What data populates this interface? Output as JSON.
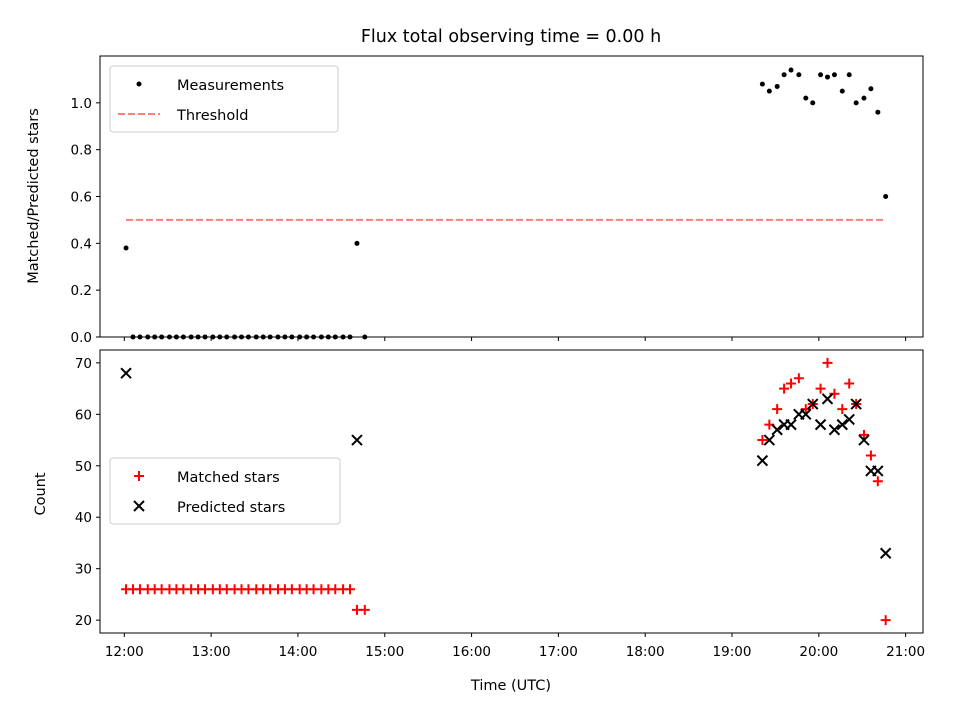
{
  "chart_data": [
    {
      "type": "scatter",
      "title": "Flux total observing time = 0.00 h",
      "xlabel": "",
      "ylabel": "Matched/Predicted stars",
      "ylim": [
        0,
        1.2
      ],
      "yticks": [
        0.0,
        0.2,
        0.4,
        0.6,
        0.8,
        1.0
      ],
      "ytick_labels": [
        "0.0",
        "0.2",
        "0.4",
        "0.6",
        "0.8",
        "1.0"
      ],
      "xlim": [
        11.72,
        21.2
      ],
      "xticks": [
        12,
        13,
        14,
        15,
        16,
        17,
        18,
        19,
        20,
        21
      ],
      "legend": {
        "position": "top-left",
        "entries": [
          {
            "label": "Measurements",
            "marker": "dot",
            "color": "#000000"
          },
          {
            "label": "Threshold",
            "marker": "dashed-line",
            "color": "#ff7f7f"
          }
        ]
      },
      "series": [
        {
          "name": "Measurements",
          "color": "#000000",
          "points": [
            [
              12.02,
              0.38
            ],
            [
              12.1,
              0.0
            ],
            [
              12.18,
              0.0
            ],
            [
              12.27,
              0.0
            ],
            [
              12.35,
              0.0
            ],
            [
              12.43,
              0.0
            ],
            [
              12.52,
              0.0
            ],
            [
              12.6,
              0.0
            ],
            [
              12.68,
              0.0
            ],
            [
              12.77,
              0.0
            ],
            [
              12.85,
              0.0
            ],
            [
              12.93,
              0.0
            ],
            [
              13.02,
              0.0
            ],
            [
              13.1,
              0.0
            ],
            [
              13.18,
              0.0
            ],
            [
              13.27,
              0.0
            ],
            [
              13.35,
              0.0
            ],
            [
              13.43,
              0.0
            ],
            [
              13.52,
              0.0
            ],
            [
              13.6,
              0.0
            ],
            [
              13.68,
              0.0
            ],
            [
              13.77,
              0.0
            ],
            [
              13.85,
              0.0
            ],
            [
              13.93,
              0.0
            ],
            [
              14.02,
              0.0
            ],
            [
              14.1,
              0.0
            ],
            [
              14.18,
              0.0
            ],
            [
              14.27,
              0.0
            ],
            [
              14.35,
              0.0
            ],
            [
              14.43,
              0.0
            ],
            [
              14.52,
              0.0
            ],
            [
              14.6,
              0.0
            ],
            [
              14.68,
              0.4
            ],
            [
              14.77,
              0.0
            ],
            [
              19.35,
              1.08
            ],
            [
              19.43,
              1.05
            ],
            [
              19.52,
              1.07
            ],
            [
              19.6,
              1.12
            ],
            [
              19.68,
              1.14
            ],
            [
              19.77,
              1.12
            ],
            [
              19.85,
              1.02
            ],
            [
              19.93,
              1.0
            ],
            [
              20.02,
              1.12
            ],
            [
              20.1,
              1.11
            ],
            [
              20.18,
              1.12
            ],
            [
              20.27,
              1.05
            ],
            [
              20.35,
              1.12
            ],
            [
              20.43,
              1.0
            ],
            [
              20.52,
              1.02
            ],
            [
              20.6,
              1.06
            ],
            [
              20.68,
              0.96
            ],
            [
              20.77,
              0.6
            ]
          ]
        },
        {
          "name": "Threshold",
          "color": "#ff7f7f",
          "style": "dashed",
          "x": [
            12.02,
            20.77
          ],
          "y": [
            0.5,
            0.5
          ]
        }
      ]
    },
    {
      "type": "scatter",
      "title": "",
      "xlabel": "Time (UTC)",
      "ylabel": "Count",
      "ylim": [
        17.5,
        72.5
      ],
      "yticks": [
        20,
        30,
        40,
        50,
        60,
        70
      ],
      "ytick_labels": [
        "20",
        "30",
        "40",
        "50",
        "60",
        "70"
      ],
      "xlim": [
        11.72,
        21.2
      ],
      "xticks": [
        12,
        13,
        14,
        15,
        16,
        17,
        18,
        19,
        20,
        21
      ],
      "xtick_labels": [
        "12:00",
        "13:00",
        "14:00",
        "15:00",
        "16:00",
        "17:00",
        "18:00",
        "19:00",
        "20:00",
        "21:00"
      ],
      "legend": {
        "position": "center-left",
        "entries": [
          {
            "label": "Matched stars",
            "marker": "plus",
            "color": "#ff0000"
          },
          {
            "label": "Predicted stars",
            "marker": "x",
            "color": "#000000"
          }
        ]
      },
      "series": [
        {
          "name": "Matched stars",
          "marker": "plus",
          "color": "#ff0000",
          "points": [
            [
              12.02,
              26
            ],
            [
              12.1,
              26
            ],
            [
              12.18,
              26
            ],
            [
              12.27,
              26
            ],
            [
              12.35,
              26
            ],
            [
              12.43,
              26
            ],
            [
              12.52,
              26
            ],
            [
              12.6,
              26
            ],
            [
              12.68,
              26
            ],
            [
              12.77,
              26
            ],
            [
              12.85,
              26
            ],
            [
              12.93,
              26
            ],
            [
              13.02,
              26
            ],
            [
              13.1,
              26
            ],
            [
              13.18,
              26
            ],
            [
              13.27,
              26
            ],
            [
              13.35,
              26
            ],
            [
              13.43,
              26
            ],
            [
              13.52,
              26
            ],
            [
              13.6,
              26
            ],
            [
              13.68,
              26
            ],
            [
              13.77,
              26
            ],
            [
              13.85,
              26
            ],
            [
              13.93,
              26
            ],
            [
              14.02,
              26
            ],
            [
              14.1,
              26
            ],
            [
              14.18,
              26
            ],
            [
              14.27,
              26
            ],
            [
              14.35,
              26
            ],
            [
              14.43,
              26
            ],
            [
              14.52,
              26
            ],
            [
              14.6,
              26
            ],
            [
              14.68,
              22
            ],
            [
              14.77,
              22
            ],
            [
              19.35,
              55
            ],
            [
              19.43,
              58
            ],
            [
              19.52,
              61
            ],
            [
              19.6,
              65
            ],
            [
              19.68,
              66
            ],
            [
              19.77,
              67
            ],
            [
              19.85,
              61
            ],
            [
              19.93,
              62
            ],
            [
              20.02,
              65
            ],
            [
              20.1,
              70
            ],
            [
              20.18,
              64
            ],
            [
              20.27,
              61
            ],
            [
              20.35,
              66
            ],
            [
              20.43,
              62
            ],
            [
              20.52,
              56
            ],
            [
              20.6,
              52
            ],
            [
              20.68,
              47
            ],
            [
              20.77,
              20
            ]
          ]
        },
        {
          "name": "Predicted stars",
          "marker": "x",
          "color": "#000000",
          "points": [
            [
              12.02,
              68
            ],
            [
              14.68,
              55
            ],
            [
              19.35,
              51
            ],
            [
              19.43,
              55
            ],
            [
              19.52,
              57
            ],
            [
              19.6,
              58
            ],
            [
              19.68,
              58
            ],
            [
              19.77,
              60
            ],
            [
              19.85,
              60
            ],
            [
              19.93,
              62
            ],
            [
              20.02,
              58
            ],
            [
              20.1,
              63
            ],
            [
              20.18,
              57
            ],
            [
              20.27,
              58
            ],
            [
              20.35,
              59
            ],
            [
              20.43,
              62
            ],
            [
              20.52,
              55
            ],
            [
              20.6,
              49
            ],
            [
              20.68,
              49
            ],
            [
              20.77,
              33
            ]
          ]
        }
      ]
    }
  ]
}
